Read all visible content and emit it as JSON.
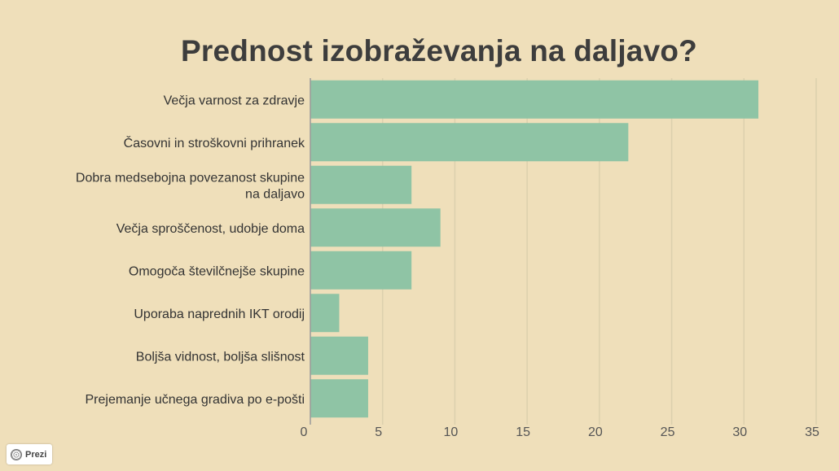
{
  "chart_data": {
    "type": "bar",
    "orientation": "horizontal",
    "title": "Prednost izobraževanja na daljavo?",
    "categories": [
      [
        "Večja varnost za zdravje"
      ],
      [
        "Časovni in stroškovni prihranek"
      ],
      [
        "Dobra medsebojna povezanost skupine",
        "na daljavo"
      ],
      [
        "Večja sproščenost, udobje doma"
      ],
      [
        "Omogoča številčnejše skupine"
      ],
      [
        "Uporaba naprednih IKT orodij"
      ],
      [
        "Boljša vidnost, boljša slišnost"
      ],
      [
        "Prejemanje učnega gradiva po e-pošti"
      ]
    ],
    "values": [
      31,
      22,
      7,
      9,
      7,
      2,
      4,
      4
    ],
    "xlim": [
      0,
      35
    ],
    "xticks": [
      0,
      5,
      10,
      15,
      20,
      25,
      30,
      35
    ],
    "grid": true,
    "legend": "none",
    "bar_color": "#8fc4a5",
    "grid_color": "#dcd0ad",
    "axis_color": "#9a9a9a"
  },
  "badge": {
    "text": "Prezi",
    "icon": "prezi-logo-icon"
  }
}
